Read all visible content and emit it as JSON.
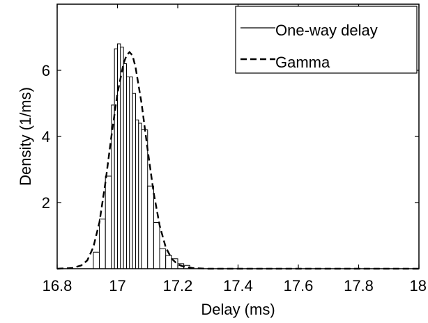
{
  "chart_data": {
    "type": "bar",
    "title": "",
    "xlabel": "Delay (ms)",
    "ylabel": "Density (1/ms)",
    "xlim": [
      16.8,
      18.0
    ],
    "ylim": [
      0,
      8
    ],
    "xticks": [
      16.8,
      17.0,
      17.2,
      17.4,
      17.6,
      17.8,
      18.0
    ],
    "xtick_labels": [
      "16.8",
      "17",
      "17.2",
      "17.4",
      "17.6",
      "17.8",
      "18"
    ],
    "yticks": [
      2,
      4,
      6
    ],
    "ytick_labels": [
      "2",
      "4",
      "6"
    ],
    "grid": false,
    "legend_position": "top-right",
    "series": [
      {
        "name": "One-way delay",
        "kind": "histogram",
        "line_style": "solid",
        "bins": [
          {
            "x0": 16.92,
            "x1": 16.94,
            "y": 0.5
          },
          {
            "x0": 16.94,
            "x1": 16.96,
            "y": 1.5
          },
          {
            "x0": 16.96,
            "x1": 16.98,
            "y": 2.8
          },
          {
            "x0": 16.98,
            "x1": 16.99,
            "y": 4.95
          },
          {
            "x0": 16.99,
            "x1": 17.0,
            "y": 6.65
          },
          {
            "x0": 17.0,
            "x1": 17.01,
            "y": 6.8
          },
          {
            "x0": 17.01,
            "x1": 17.02,
            "y": 6.7
          },
          {
            "x0": 17.02,
            "x1": 17.03,
            "y": 6.2
          },
          {
            "x0": 17.03,
            "x1": 17.04,
            "y": 5.8
          },
          {
            "x0": 17.04,
            "x1": 17.05,
            "y": 5.8
          },
          {
            "x0": 17.05,
            "x1": 17.06,
            "y": 5.3
          },
          {
            "x0": 17.06,
            "x1": 17.07,
            "y": 4.5
          },
          {
            "x0": 17.07,
            "x1": 17.08,
            "y": 4.4
          },
          {
            "x0": 17.08,
            "x1": 17.1,
            "y": 4.2
          },
          {
            "x0": 17.1,
            "x1": 17.12,
            "y": 2.5
          },
          {
            "x0": 17.12,
            "x1": 17.14,
            "y": 1.4
          },
          {
            "x0": 17.14,
            "x1": 17.16,
            "y": 0.6
          },
          {
            "x0": 17.16,
            "x1": 17.18,
            "y": 0.4
          },
          {
            "x0": 17.18,
            "x1": 17.2,
            "y": 0.3
          },
          {
            "x0": 17.2,
            "x1": 17.22,
            "y": 0.15
          },
          {
            "x0": 17.22,
            "x1": 17.24,
            "y": 0.1
          }
        ]
      },
      {
        "name": "Gamma",
        "kind": "line",
        "line_style": "dashed",
        "x": [
          16.8,
          16.85,
          16.88,
          16.9,
          16.92,
          16.94,
          16.96,
          16.98,
          17.0,
          17.02,
          17.03,
          17.04,
          17.05,
          17.06,
          17.08,
          17.1,
          17.12,
          17.14,
          17.16,
          17.18,
          17.2,
          17.22,
          17.25,
          17.3,
          17.4,
          17.6,
          17.8,
          18.0
        ],
        "y": [
          0.0,
          0.02,
          0.1,
          0.25,
          0.65,
          1.4,
          2.6,
          4.0,
          5.3,
          6.2,
          6.45,
          6.55,
          6.45,
          6.1,
          5.0,
          3.6,
          2.3,
          1.3,
          0.65,
          0.3,
          0.13,
          0.06,
          0.02,
          0.0,
          0.0,
          0.0,
          0.0,
          0.0
        ]
      }
    ]
  }
}
